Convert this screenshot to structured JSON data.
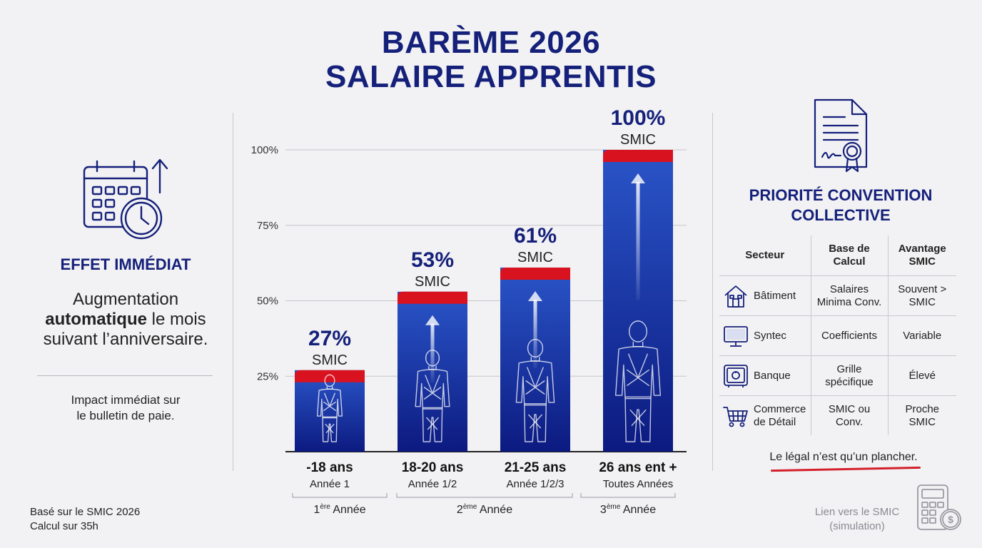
{
  "title": {
    "line1": "BARÈME 2026",
    "line2": "SALAIRE APPRENTIS"
  },
  "left_panel": {
    "heading": "EFFET IMMÉDIAT",
    "body_pre": "Augmentation",
    "body_bold": "automatique",
    "body_mid": "le mois",
    "body_post": "suivant l’anniversaire.",
    "impact_line1": "Impact immédiat sur",
    "impact_line2": "le bulletin de paie.",
    "footer_line1": "Basé sur le SMIC 2026",
    "footer_line2": "Calcul sur 35h"
  },
  "right_panel": {
    "heading_line1": "PRIORITÉ CONVENTION",
    "heading_line2": "COLLECTIVE",
    "columns": [
      "Secteur",
      "Base de Calcul",
      "Avantage SMIC"
    ],
    "rows": [
      {
        "icon": "house-icon",
        "sector": "Bâtiment",
        "base": "Salaires Minima Conv.",
        "advantage": "Souvent > SMIC"
      },
      {
        "icon": "monitor-icon",
        "sector": "Syntec",
        "base": "Coefficients",
        "advantage": "Variable"
      },
      {
        "icon": "safe-icon",
        "sector": "Banque",
        "base": "Grille spécifique",
        "advantage": "Élevé"
      },
      {
        "icon": "shopping-cart-icon",
        "sector": "Commerce de Détail",
        "base": "SMIC ou Conv.",
        "advantage": "Proche SMIC"
      }
    ],
    "note": "Le légal n’est qu’un plancher.",
    "link_line1": "Lien vers le SMIC",
    "link_line2": "(simulation)"
  },
  "colors": {
    "title": "#15207a",
    "bar_top": "#2a55c8",
    "bar_bottom": "#0c1a80",
    "bar_cap": "#d8121e",
    "underline": "#d3202a"
  },
  "chart_data": {
    "type": "bar",
    "categories": [
      "-18 ans",
      "18-20 ans",
      "21-25 ans",
      "26 ans ent +"
    ],
    "sub_labels": [
      "Année 1",
      "Année 1/2",
      "Année 1/2/3",
      "Toutes Années"
    ],
    "values": [
      27,
      53,
      61,
      100
    ],
    "value_labels": [
      "27%",
      "53%",
      "61%",
      "100%"
    ],
    "value_unit": "SMIC",
    "yticks": [
      25,
      50,
      75,
      100
    ],
    "ytick_labels": [
      "25%",
      "50%",
      "75%",
      "100%"
    ],
    "ylim": [
      0,
      100
    ],
    "grid": true,
    "year_groups": [
      {
        "ordinal": "1",
        "sup": "ère",
        "label": "Année"
      },
      {
        "ordinal": "2",
        "sup": "ème",
        "label": "Année"
      },
      {
        "ordinal": "3",
        "sup": "ème",
        "label": "Année"
      }
    ],
    "figures": [
      "child",
      "teen",
      "young-adult",
      "adult"
    ]
  }
}
